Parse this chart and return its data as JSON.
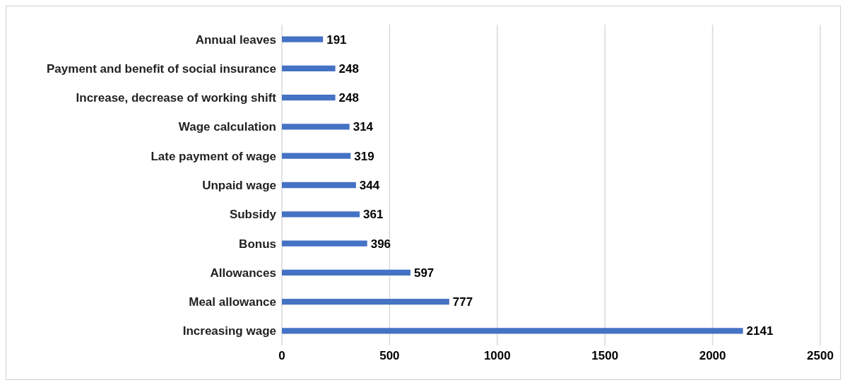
{
  "chart_data": {
    "type": "bar",
    "orientation": "horizontal",
    "categories": [
      "Annual leaves",
      "Payment and benefit of social insurance",
      "Increase, decrease of working shift",
      "Wage calculation",
      "Late payment of wage",
      "Unpaid wage",
      "Subsidy",
      "Bonus",
      "Allowances",
      "Meal allowance",
      "Increasing wage"
    ],
    "values": [
      191,
      248,
      248,
      314,
      319,
      344,
      361,
      396,
      597,
      777,
      2141
    ],
    "color": "#4472c4",
    "xlim": [
      0,
      2500
    ],
    "xticks": [
      0,
      500,
      1000,
      1500,
      2000,
      2500
    ],
    "grid": "x",
    "data_labels": true
  }
}
